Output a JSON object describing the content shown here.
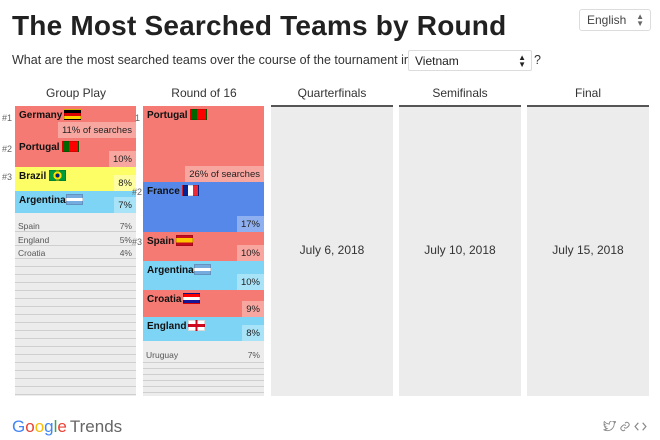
{
  "title": "The Most Searched Teams by Round",
  "language": {
    "selected": "English"
  },
  "question": {
    "text": "What are the most searched teams over the course of the tournament in",
    "country": "Vietnam",
    "suffix": "?"
  },
  "columns": [
    {
      "label": "Group Play"
    },
    {
      "label": "Round of 16"
    },
    {
      "label": "Quarterfinals",
      "date": "July 6, 2018"
    },
    {
      "label": "Semifinals",
      "date": "July 10, 2018"
    },
    {
      "label": "Final",
      "date": "July 15, 2018"
    }
  ],
  "group_play": {
    "ranks": [
      "#1",
      "#2",
      "#3"
    ],
    "teams": [
      {
        "name": "Germany",
        "pct": "11% of searches",
        "share": 11,
        "color": "#f47a73",
        "flag": "germany-flag-icon"
      },
      {
        "name": "Portugal",
        "pct": "10%",
        "share": 10,
        "color": "#f47a73",
        "flag": "portugal-flag-icon"
      },
      {
        "name": "Brazil",
        "pct": "8%",
        "share": 8,
        "color": "#fdfd66",
        "flag": "brazil-flag-icon"
      },
      {
        "name": "Argentina",
        "pct": "7%",
        "share": 7,
        "color": "#7dd4f5",
        "flag": "argentina-flag-icon"
      }
    ],
    "minor": [
      {
        "name": "Spain",
        "pct": "7%"
      },
      {
        "name": "England",
        "pct": "5%"
      },
      {
        "name": "Croatia",
        "pct": "4%"
      }
    ]
  },
  "round_of_16": {
    "ranks": [
      "1",
      "#2",
      "#3"
    ],
    "teams": [
      {
        "name": "Portugal",
        "pct": "26% of searches",
        "share": 26,
        "color": "#f47a73",
        "flag": "portugal-flag-icon"
      },
      {
        "name": "France",
        "pct": "17%",
        "share": 17,
        "color": "#5588e8",
        "flag": "france-flag-icon"
      },
      {
        "name": "Spain",
        "pct": "10%",
        "share": 10,
        "color": "#f47a73",
        "flag": "spain-flag-icon"
      },
      {
        "name": "Argentina",
        "pct": "10%",
        "share": 10,
        "color": "#7dd4f5",
        "flag": "argentina-flag-icon"
      },
      {
        "name": "Croatia",
        "pct": "9%",
        "share": 9,
        "color": "#f47a73",
        "flag": "croatia-flag-icon"
      },
      {
        "name": "England",
        "pct": "8%",
        "share": 8,
        "color": "#7dd4f5",
        "flag": "england-flag-icon"
      }
    ],
    "minor": [
      {
        "name": "Uruguay",
        "pct": "7%"
      }
    ]
  },
  "footer": {
    "logo_google": "Google",
    "logo_trends": "Trends",
    "icons": [
      "twitter-icon",
      "link-icon",
      "embed-icon"
    ]
  }
}
